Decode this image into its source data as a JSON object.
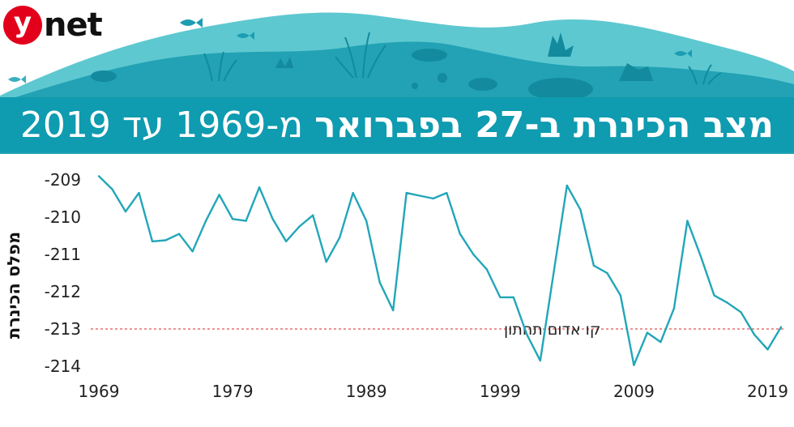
{
  "logo": {
    "letter": "y",
    "word": "net"
  },
  "title": {
    "bold": "מצב הכינרת ב-27 בפברואר",
    "light": "מ-1969 עד 2019"
  },
  "colors": {
    "line": "#22a6b8",
    "reference": "#e05555",
    "banner": "#0f9bb0",
    "logo": "#e3001b"
  },
  "chart_data": {
    "type": "line",
    "title": "מצב הכינרת ב-27 בפברואר מ-1969 עד 2019",
    "ylabel": "מפלס הכינרת",
    "xlabel": "",
    "xlim": [
      1969,
      2019
    ],
    "ylim": [
      -214,
      -209
    ],
    "x_ticks": [
      1969,
      1979,
      1989,
      1999,
      2009,
      2019
    ],
    "y_ticks": [
      -209,
      -210,
      -211,
      -212,
      -213,
      -214
    ],
    "grid": false,
    "reference_line": {
      "value": -213,
      "label": "קו אדום תחתון"
    },
    "series": [
      {
        "values": [
          {
            "x": 1969,
            "y": -208.9
          },
          {
            "x": 1970,
            "y": -209.25
          },
          {
            "x": 1971,
            "y": -209.85
          },
          {
            "x": 1972,
            "y": -209.35
          },
          {
            "x": 1973,
            "y": -210.65
          },
          {
            "x": 1974,
            "y": -210.62
          },
          {
            "x": 1975,
            "y": -210.45
          },
          {
            "x": 1976,
            "y": -210.92
          },
          {
            "x": 1977,
            "y": -210.1
          },
          {
            "x": 1978,
            "y": -209.4
          },
          {
            "x": 1979,
            "y": -210.05
          },
          {
            "x": 1980,
            "y": -210.1
          },
          {
            "x": 1981,
            "y": -209.2
          },
          {
            "x": 1982,
            "y": -210.05
          },
          {
            "x": 1983,
            "y": -210.65
          },
          {
            "x": 1984,
            "y": -210.25
          },
          {
            "x": 1985,
            "y": -209.95
          },
          {
            "x": 1986,
            "y": -211.2
          },
          {
            "x": 1987,
            "y": -210.55
          },
          {
            "x": 1988,
            "y": -209.35
          },
          {
            "x": 1989,
            "y": -210.1
          },
          {
            "x": 1990,
            "y": -211.75
          },
          {
            "x": 1991,
            "y": -212.5
          },
          {
            "x": 1992,
            "y": -209.35
          },
          {
            "x": 1994,
            "y": -209.5
          },
          {
            "x": 1995,
            "y": -209.35
          },
          {
            "x": 1996,
            "y": -210.45
          },
          {
            "x": 1997,
            "y": -211.0
          },
          {
            "x": 1998,
            "y": -211.4
          },
          {
            "x": 1999,
            "y": -212.15
          },
          {
            "x": 2000,
            "y": -212.15
          },
          {
            "x": 2001,
            "y": -213.15
          },
          {
            "x": 2002,
            "y": -213.85
          },
          {
            "x": 2004,
            "y": -209.15
          },
          {
            "x": 2005,
            "y": -209.8
          },
          {
            "x": 2006,
            "y": -211.3
          },
          {
            "x": 2007,
            "y": -211.5
          },
          {
            "x": 2008,
            "y": -212.1
          },
          {
            "x": 2009,
            "y": -213.97
          },
          {
            "x": 2010,
            "y": -213.1
          },
          {
            "x": 2011,
            "y": -213.35
          },
          {
            "x": 2012,
            "y": -212.45
          },
          {
            "x": 2013,
            "y": -210.1
          },
          {
            "x": 2014,
            "y": -211.05
          },
          {
            "x": 2015,
            "y": -212.1
          },
          {
            "x": 2016,
            "y": -212.3
          },
          {
            "x": 2017,
            "y": -212.55
          },
          {
            "x": 2018,
            "y": -213.15
          },
          {
            "x": 2019,
            "y": -213.55
          },
          {
            "x": 2020,
            "y": -212.95
          }
        ]
      }
    ]
  }
}
